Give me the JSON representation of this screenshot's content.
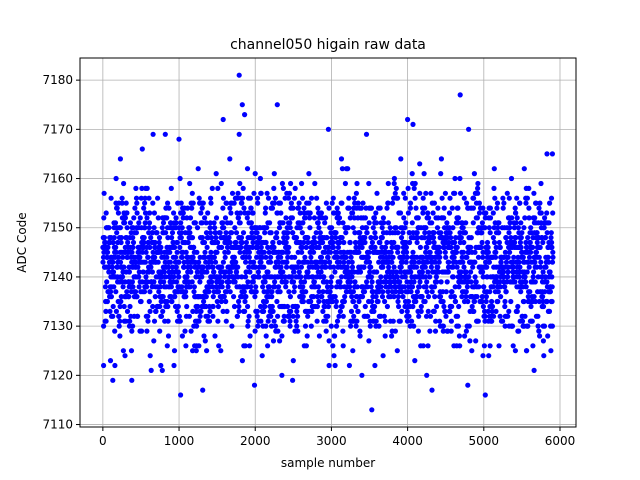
{
  "chart_data": {
    "type": "scatter",
    "title": "channel050 higain raw data",
    "xlabel": "sample number",
    "ylabel": "ADC Code",
    "xlim": [
      -300,
      6210
    ],
    "ylim": [
      7109.5,
      7184.5
    ],
    "xticks": [
      0,
      1000,
      2000,
      3000,
      4000,
      5000,
      6000
    ],
    "xtick_labels": [
      "0",
      "1000",
      "2000",
      "3000",
      "4000",
      "5000",
      "6000"
    ],
    "yticks": [
      7110,
      7120,
      7130,
      7140,
      7150,
      7160,
      7170,
      7180
    ],
    "ytick_labels": [
      "7110",
      "7120",
      "7130",
      "7140",
      "7150",
      "7160",
      "7170",
      "7180"
    ],
    "grid": true,
    "marker": "circle",
    "color": "#0000ff",
    "series": [
      {
        "x_range": [
          0,
          5910
        ],
        "sample_count": 5910,
        "typical_range": [
          7133,
          7153
        ],
        "mean": 7143,
        "highlight_points": [
          [
            10,
            7122
          ],
          [
            130,
            7119
          ],
          [
            290,
            7124
          ],
          [
            380,
            7119
          ],
          [
            230,
            7164
          ],
          [
            660,
            7169
          ],
          [
            820,
            7169
          ],
          [
            760,
            7122
          ],
          [
            780,
            7121
          ],
          [
            1000,
            7168
          ],
          [
            1020,
            7116
          ],
          [
            1310,
            7117
          ],
          [
            1580,
            7172
          ],
          [
            1790,
            7181
          ],
          [
            1830,
            7175
          ],
          [
            1860,
            7173
          ],
          [
            1790,
            7169
          ],
          [
            1990,
            7118
          ],
          [
            2290,
            7175
          ],
          [
            2350,
            7120
          ],
          [
            2490,
            7119
          ],
          [
            2960,
            7170
          ],
          [
            2970,
            7122
          ],
          [
            3400,
            7120
          ],
          [
            3460,
            7169
          ],
          [
            3530,
            7113
          ],
          [
            3570,
            7122
          ],
          [
            3910,
            7164
          ],
          [
            4000,
            7172
          ],
          [
            4070,
            7171
          ],
          [
            4250,
            7120
          ],
          [
            4320,
            7117
          ],
          [
            4690,
            7177
          ],
          [
            4800,
            7170
          ],
          [
            4790,
            7118
          ],
          [
            4990,
            7124
          ],
          [
            5020,
            7116
          ],
          [
            5560,
            7125
          ],
          [
            5660,
            7121
          ],
          [
            5830,
            7165
          ],
          [
            5900,
            7165
          ],
          [
            5880,
            7125
          ]
        ]
      }
    ]
  }
}
